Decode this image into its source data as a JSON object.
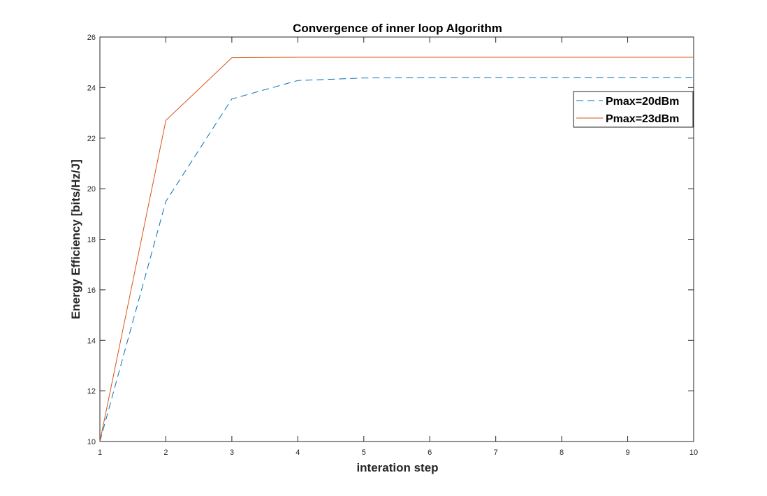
{
  "chart_data": {
    "type": "line",
    "title": "Convergence of inner loop Algorithm",
    "xlabel": "interation step",
    "ylabel": "Energy Efficiency [bits/Hz/J]",
    "xlim": [
      1,
      10
    ],
    "ylim": [
      10,
      26
    ],
    "xticks": [
      "1",
      "2",
      "3",
      "4",
      "5",
      "6",
      "7",
      "8",
      "9",
      "10"
    ],
    "yticks": [
      "10",
      "12",
      "14",
      "16",
      "18",
      "20",
      "22",
      "24",
      "26"
    ],
    "grid": false,
    "legend_position": "top-right",
    "x": [
      1,
      2,
      3,
      4,
      5,
      6,
      7,
      8,
      9,
      10
    ],
    "series": [
      {
        "name": "Pmax=20dBm",
        "color": "#0072BD",
        "style": "dashed",
        "values": [
          10.0,
          19.5,
          23.55,
          24.28,
          24.38,
          24.4,
          24.4,
          24.4,
          24.4,
          24.4
        ]
      },
      {
        "name": "Pmax=23dBm",
        "color": "#D95319",
        "style": "solid",
        "values": [
          10.0,
          22.7,
          25.18,
          25.2,
          25.2,
          25.2,
          25.2,
          25.2,
          25.2,
          25.2
        ]
      }
    ]
  }
}
